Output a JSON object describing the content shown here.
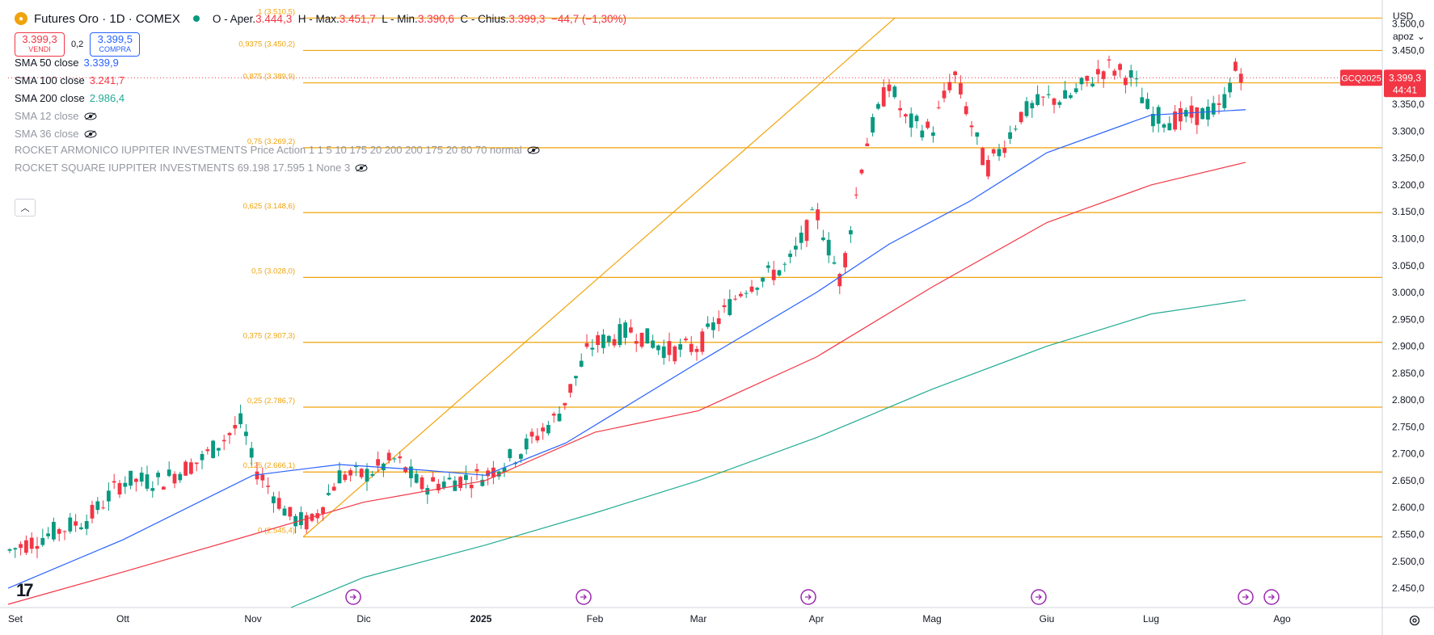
{
  "header": {
    "symbol_title": "Futures Oro · 1D · COMEX",
    "ohlc": {
      "open_label": "O - Aper.",
      "open": "3.444,3",
      "high_label": "H - Max.",
      "high": "3.451,7",
      "low_label": "L - Min.",
      "low": "3.390,6",
      "close_label": "C - Chius.",
      "close": "3.399,3",
      "change": "−44,7 (−1,30%)"
    }
  },
  "trade": {
    "sell_price": "3.399,3",
    "sell_label": "VENDI",
    "spread": "0,2",
    "buy_price": "3.399,5",
    "buy_label": "COMPRA"
  },
  "indicators": [
    {
      "name": "SMA 50 close",
      "value": "3.339,9",
      "color": "#2962ff",
      "hidden": false
    },
    {
      "name": "SMA 100 close",
      "value": "3.241,7",
      "color": "#f23645",
      "hidden": false
    },
    {
      "name": "SMA 200 close",
      "value": "2.986,4",
      "color": "#22ab94",
      "hidden": false
    },
    {
      "name": "SMA 12 close",
      "value": "",
      "color": "#9598a1",
      "hidden": true
    },
    {
      "name": "SMA 36 close",
      "value": "",
      "color": "#9598a1",
      "hidden": true
    },
    {
      "name": "ROCKET ARMONICO IUPPITER INVESTMENTS Price Action 1 1 5 10 175 20 200 200 175 20 80 70 normal",
      "value": "",
      "color": "#9598a1",
      "hidden": true
    },
    {
      "name": "ROCKET SQUARE IUPPITER INVESTMENTS 69.198 17.595 1 None 3",
      "value": "",
      "color": "#9598a1",
      "hidden": true
    }
  ],
  "toolbar": {
    "currency": "USD",
    "scale_mode": "apoz",
    "collapse_icon": "chevron-up-icon",
    "settings_icon": "gear-icon"
  },
  "price_tag": {
    "ticker": "GCQ2025",
    "price": "3.399,3",
    "countdown": "44:41",
    "color": "#f23645"
  },
  "chart_data": {
    "type": "candlestick",
    "y_axis_labels": [
      "3.500,0",
      "3.450,0",
      "3.400,0",
      "3.350,0",
      "3.300,0",
      "3.250,0",
      "3.200,0",
      "3.150,0",
      "3.100,0",
      "3.050,0",
      "3.000,0",
      "2.950,0",
      "2.900,0",
      "2.850,0",
      "2.800,0",
      "2.750,0",
      "2.700,0",
      "2.650,0",
      "2.600,0",
      "2.550,0",
      "2.500,0",
      "2.450,0"
    ],
    "x_axis_labels": [
      "Set",
      "Ott",
      "Nov",
      "Dic",
      "2025",
      "Feb",
      "Mar",
      "Apr",
      "Mag",
      "Giu",
      "Lug",
      "Ago"
    ],
    "ylim": [
      2414,
      3544
    ],
    "fib_levels": [
      {
        "label": "1 (3.510,5)",
        "value": 3510.5
      },
      {
        "label": "0,9375 (3.450,2)",
        "value": 3450.2
      },
      {
        "label": "0,875 (3.389,9)",
        "value": 3389.9
      },
      {
        "label": "0,75 (3.269,2)",
        "value": 3269.2
      },
      {
        "label": "0,625 (3.148,6)",
        "value": 3148.6
      },
      {
        "label": "0,5 (3.028,0)",
        "value": 3028.0
      },
      {
        "label": "0,375 (2.907,3)",
        "value": 2907.3
      },
      {
        "label": "0,25 (2.786,7)",
        "value": 2786.7
      },
      {
        "label": "0,125 (2.666,1)",
        "value": 2666.1
      },
      {
        "label": "0 (2.545,4)",
        "value": 2545.4
      }
    ],
    "fib_color": "#f0a30a",
    "candle_up_color": "#089981",
    "candle_down_color": "#f23645",
    "sma50_color": "#2962ff",
    "sma100_color": "#f23645",
    "sma200_color": "#22ab94"
  }
}
